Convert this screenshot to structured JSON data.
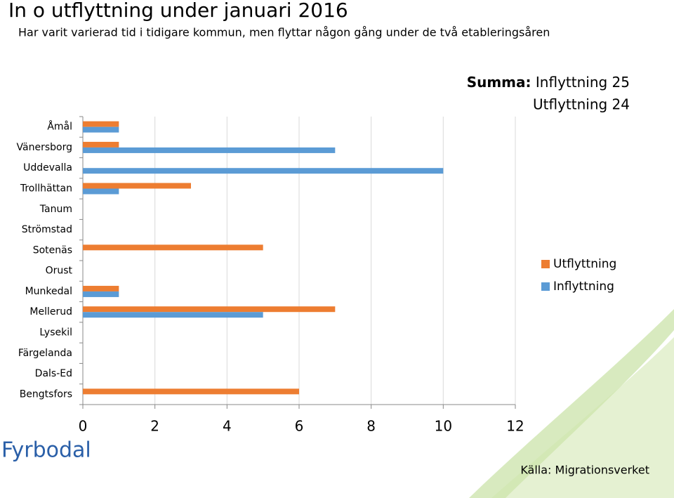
{
  "chart_data": {
    "type": "hbar",
    "title": "In o utflyttning under januari 2016",
    "subtitle": "Har varit varierad tid i tidigare kommun, men flyttar någon gång under de två etableringsåren",
    "summary_label": "Summa:",
    "summary_lines": [
      "Inflyttning 25",
      "Utflyttning 24"
    ],
    "categories": [
      "Åmål",
      "Vänersborg",
      "Uddevalla",
      "Trollhättan",
      "Tanum",
      "Strömstad",
      "Sotenäs",
      "Orust",
      "Munkedal",
      "Mellerud",
      "Lysekil",
      "Färgelanda",
      "Dals-Ed",
      "Bengtsfors"
    ],
    "series": [
      {
        "name": "Utflyttning",
        "color": "#ED7D31",
        "values": [
          1,
          1,
          0,
          3,
          0,
          0,
          5,
          0,
          1,
          7,
          0,
          0,
          0,
          6
        ]
      },
      {
        "name": "Inflyttning",
        "color": "#5B9BD5",
        "values": [
          1,
          7,
          10,
          1,
          0,
          0,
          0,
          0,
          1,
          5,
          0,
          0,
          0,
          0
        ]
      }
    ],
    "xlim": [
      0,
      12
    ],
    "xticks": [
      0,
      2,
      4,
      6,
      8,
      10,
      12
    ],
    "grid": true,
    "legend": "right",
    "source": "Källa: Migrationsverket",
    "logo": "Fyrbodal"
  }
}
